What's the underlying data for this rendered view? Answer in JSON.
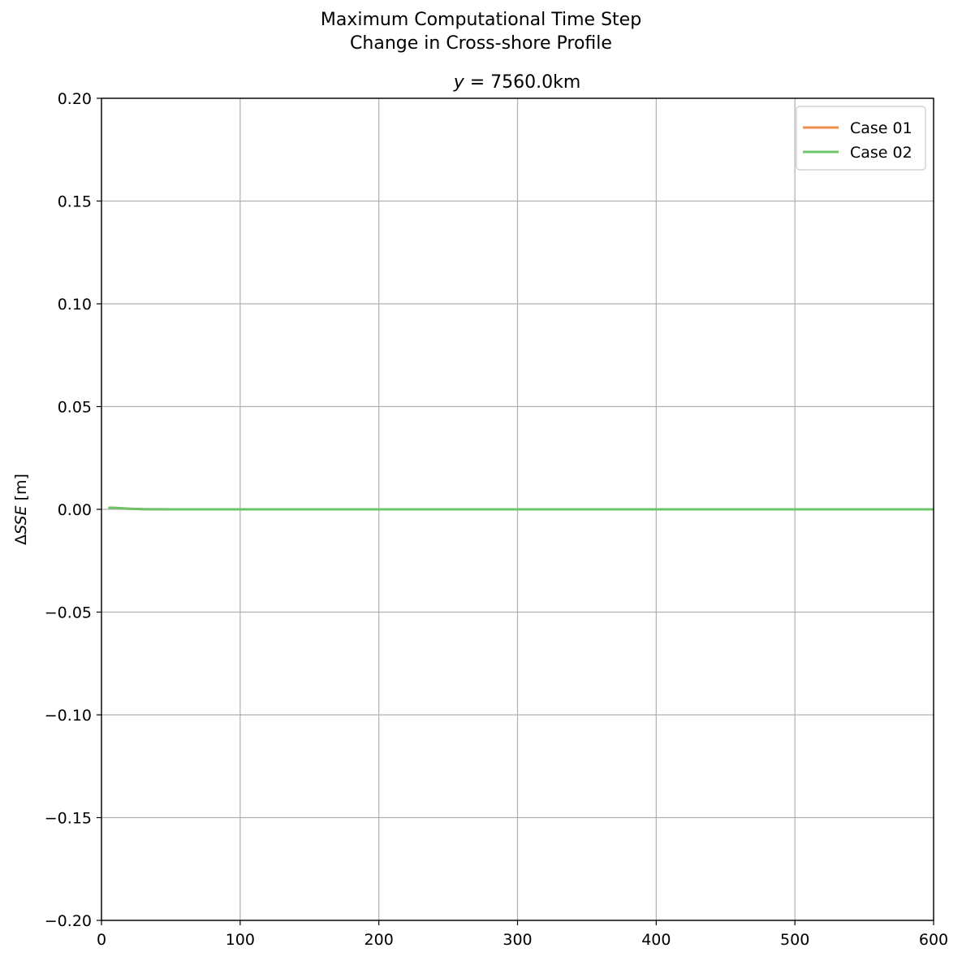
{
  "suptitle": {
    "line1": "Maximum Computational Time Step",
    "line2": "Change in Cross-shore Profile"
  },
  "chart_data": {
    "type": "line",
    "title_var": "y",
    "title_rest": " = 7560.0km",
    "xlabel": "",
    "ylabel_delta": "Δ",
    "ylabel_var": "SSE",
    "ylabel_unit": " [m]",
    "xlim": [
      0,
      600
    ],
    "ylim": [
      -0.2,
      0.2
    ],
    "xticks": [
      0,
      100,
      200,
      300,
      400,
      500,
      600
    ],
    "xtick_labels": [
      "0",
      "100",
      "200",
      "300",
      "400",
      "500",
      "600"
    ],
    "yticks": [
      -0.2,
      -0.15,
      -0.1,
      -0.05,
      0,
      0.05,
      0.1,
      0.15,
      0.2
    ],
    "ytick_labels": [
      "−0.20",
      "−0.15",
      "−0.10",
      "−0.05",
      "0.00",
      "0.05",
      "0.10",
      "0.15",
      "0.20"
    ],
    "grid": true,
    "legend_position": "top-right",
    "series": [
      {
        "name": "Case 01",
        "color": "#f28e4c",
        "x": [
          5,
          10,
          15,
          20,
          25,
          30,
          40,
          50,
          60,
          80,
          100,
          150,
          200,
          300,
          400,
          500,
          600
        ],
        "y": [
          0.0008,
          0.0007,
          0.0005,
          0.0003,
          0.0002,
          0.0001,
          5e-05,
          2e-05,
          0,
          0,
          0,
          0,
          0,
          0,
          0,
          0,
          0
        ]
      },
      {
        "name": "Case 02",
        "color": "#6cc46a",
        "x": [
          5,
          10,
          15,
          20,
          25,
          30,
          40,
          50,
          60,
          80,
          100,
          150,
          200,
          300,
          400,
          500,
          600
        ],
        "y": [
          0.0008,
          0.0007,
          0.0005,
          0.0003,
          0.0002,
          0.0001,
          5e-05,
          2e-05,
          0,
          0,
          0,
          0,
          0,
          0,
          0,
          0,
          0
        ]
      }
    ]
  }
}
